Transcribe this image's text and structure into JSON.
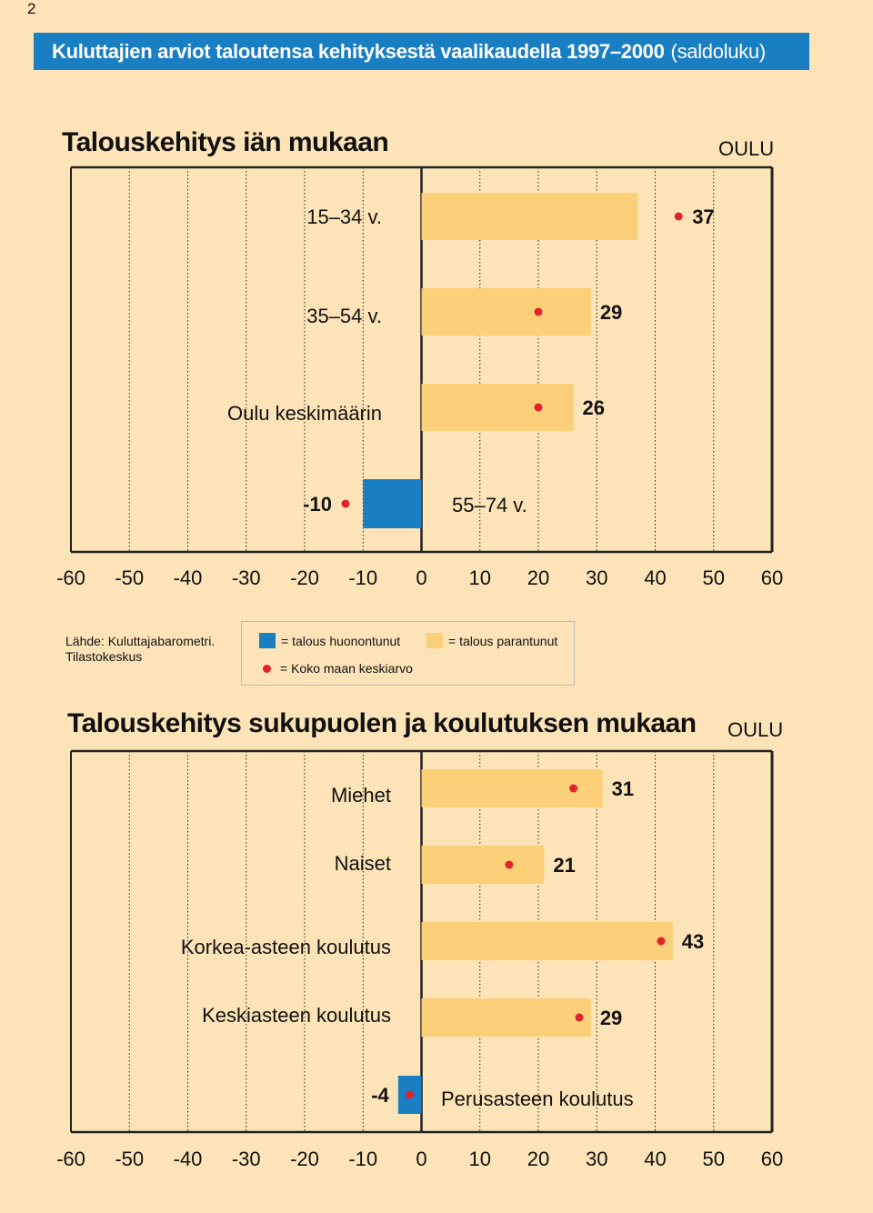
{
  "page_number": "2",
  "header": {
    "title": "Kuluttajien arviot taloutensa kehityksestä vaalikaudella 1997–2000",
    "subtitle": "(saldoluku)"
  },
  "source": {
    "line1": "Lähde: Kuluttajabarometri.",
    "line2": "Tilastokeskus"
  },
  "legend": {
    "worsened": "= talous huonontunut",
    "improved": "= talous parantunut",
    "national_average": "= Koko maan keskiarvo"
  },
  "colors": {
    "background": "#fde4b8",
    "improved": "#fccf79",
    "worsened": "#1a7ec2",
    "national_average_dot": "#e0232e",
    "header": "#1a7ec2"
  },
  "chart_data": [
    {
      "type": "bar",
      "orientation": "horizontal",
      "title": "Talouskehitys iän mukaan",
      "region": "OULU",
      "xlim": [
        -60,
        60
      ],
      "xticks": [
        "-60",
        "-50",
        "-40",
        "-30",
        "-20",
        "-10",
        "0",
        "10",
        "20",
        "30",
        "40",
        "50",
        "60"
      ],
      "categories": [
        "15–34 v.",
        "35–54 v.",
        "Oulu keskimäärin",
        "55–74 v."
      ],
      "values": [
        37,
        29,
        26,
        -10
      ],
      "value_labels": [
        "37",
        "29",
        "26",
        "-10"
      ],
      "national_average": [
        44,
        20,
        20,
        -13
      ]
    },
    {
      "type": "bar",
      "orientation": "horizontal",
      "title": "Talouskehitys sukupuolen ja koulutuksen mukaan",
      "region": "OULU",
      "xlim": [
        -60,
        60
      ],
      "xticks": [
        "-60",
        "-50",
        "-40",
        "-30",
        "-20",
        "-10",
        "0",
        "10",
        "20",
        "30",
        "40",
        "50",
        "60"
      ],
      "categories": [
        "Miehet",
        "Naiset",
        "Korkea-asteen koulutus",
        "Keskiasteen koulutus",
        "Perusasteen koulutus"
      ],
      "values": [
        31,
        21,
        43,
        29,
        -4
      ],
      "value_labels": [
        "31",
        "21",
        "43",
        "29",
        "-4"
      ],
      "national_average": [
        26,
        15,
        41,
        27,
        -2
      ]
    }
  ]
}
